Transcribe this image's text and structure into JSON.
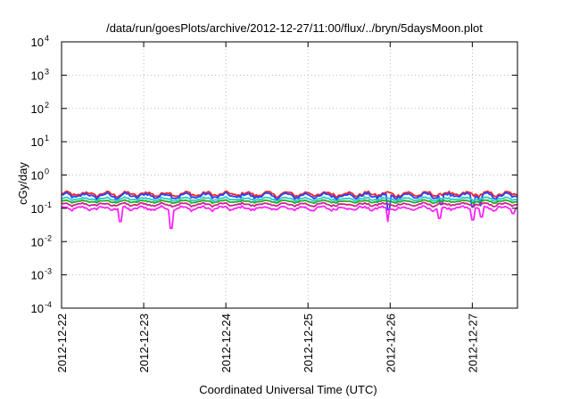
{
  "chart_data": {
    "type": "line",
    "title": "/data/run/goesPlots/archive/2012-12-27/11:00/flux/../bryn/5daysMoon.plot",
    "xlabel": "Coordinated Universal Time (UTC)",
    "ylabel": "cGy/day",
    "yscale": "log",
    "ylim_exponents": [
      -4,
      4
    ],
    "y_tick_exponents": [
      -4,
      -3,
      -2,
      -1,
      0,
      1,
      2,
      3,
      4
    ],
    "y_tick_base": "10",
    "x_tick_labels": [
      "2012-12-22",
      "2012-12-23",
      "2012-12-24",
      "2012-12-25",
      "2012-12-26",
      "2012-12-27"
    ],
    "x_range_days": [
      0,
      5.55
    ],
    "grid": true,
    "legend": "none",
    "series": [
      {
        "color": "#ff2222",
        "baseline": 0.27,
        "amp": 0.06,
        "dips": []
      },
      {
        "color": "#2244ff",
        "baseline": 0.24,
        "amp": 0.06,
        "dips": [
          [
            3.98,
            0.09
          ],
          [
            4.62,
            0.13
          ],
          [
            5.0,
            0.11
          ],
          [
            5.1,
            0.12
          ]
        ]
      },
      {
        "color": "#22cccc",
        "baseline": 0.19,
        "amp": 0.03,
        "dips": []
      },
      {
        "color": "#22aa22",
        "baseline": 0.16,
        "amp": 0.02,
        "dips": []
      },
      {
        "color": "#cc2288",
        "baseline": 0.13,
        "amp": 0.02,
        "dips": []
      },
      {
        "color": "#ff22ff",
        "baseline": 0.1,
        "amp": 0.02,
        "dips": [
          [
            0.72,
            0.04
          ],
          [
            1.33,
            0.025
          ],
          [
            3.97,
            0.04
          ],
          [
            4.6,
            0.05
          ],
          [
            5.0,
            0.045
          ],
          [
            5.12,
            0.055
          ],
          [
            5.5,
            0.07
          ]
        ]
      }
    ]
  }
}
